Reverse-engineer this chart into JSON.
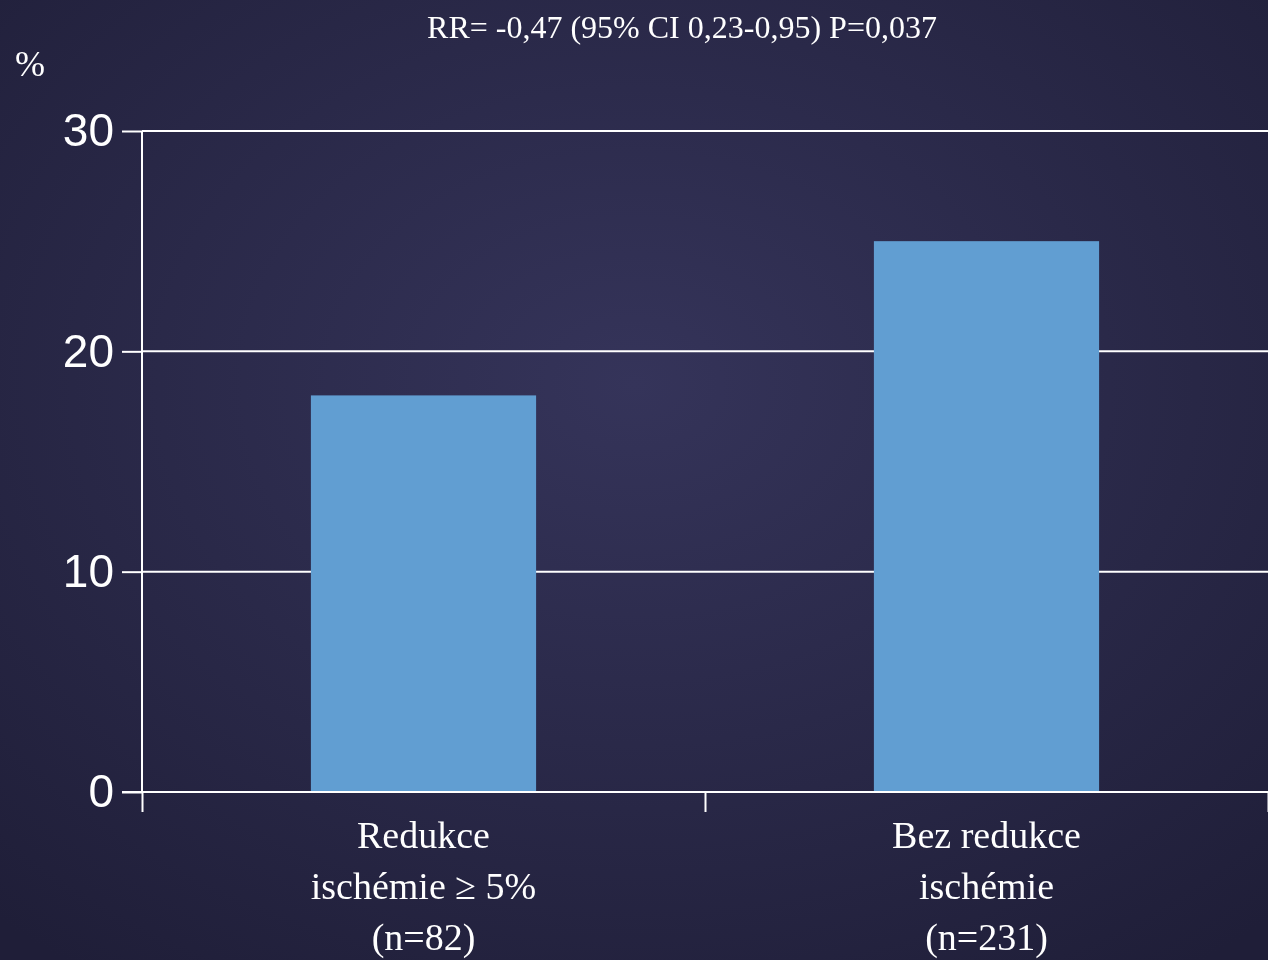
{
  "chart_data": {
    "type": "bar",
    "title": "RR= -0,47 (95% CI 0,23-0,95) P=0,037",
    "ylabel": "%",
    "categories": [
      "Redukce\nischémie  ≥ 5%\n(n=82)",
      "Bez redukce\nischémie\n(n=231)"
    ],
    "values": [
      18,
      25
    ],
    "color": "#619ed2",
    "ylim": [
      0,
      30
    ],
    "yticks": [
      0,
      10,
      20,
      30
    ],
    "grid": "y"
  }
}
